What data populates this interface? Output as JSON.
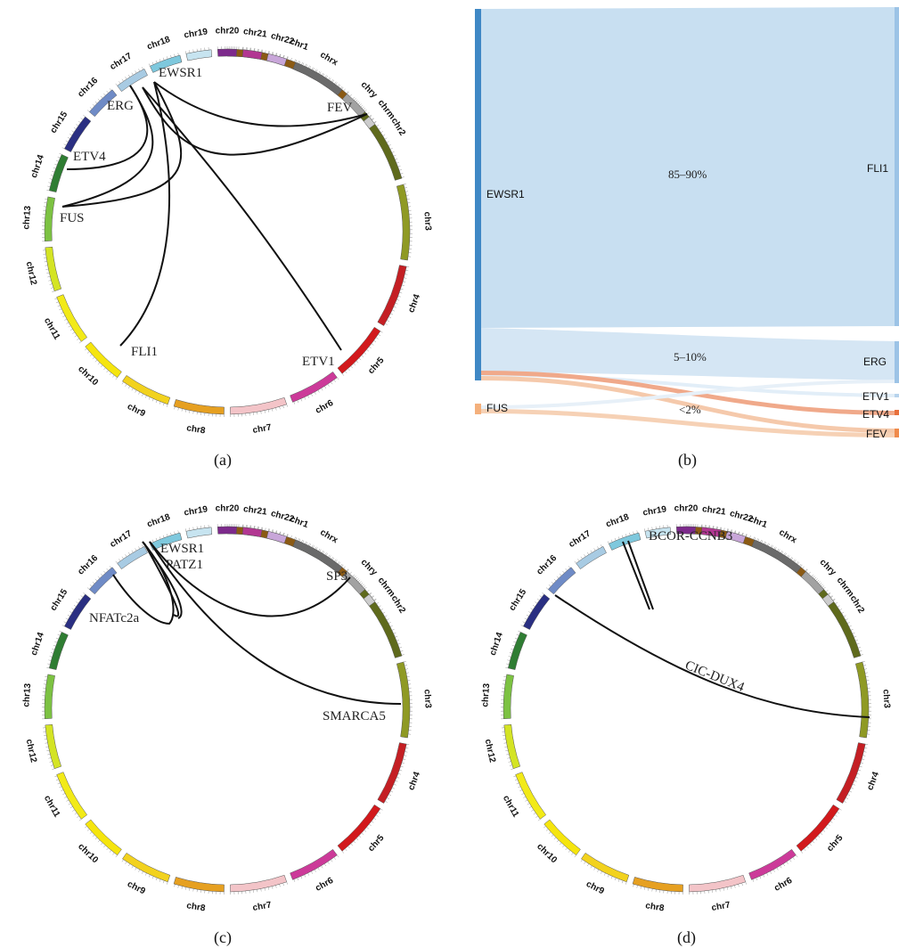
{
  "chromosomes": [
    {
      "name": "chr1",
      "color": "#8b5a14"
    },
    {
      "name": "chr2",
      "color": "#5f6a1c"
    },
    {
      "name": "chr3",
      "color": "#8f9a24"
    },
    {
      "name": "chr4",
      "color": "#c41f24"
    },
    {
      "name": "chr5",
      "color": "#d2191c"
    },
    {
      "name": "chr6",
      "color": "#cc3a99"
    },
    {
      "name": "chr7",
      "color": "#f3c4c8"
    },
    {
      "name": "chr8",
      "color": "#e6a021"
    },
    {
      "name": "chr9",
      "color": "#f2d21e"
    },
    {
      "name": "chr10",
      "color": "#f5e50e"
    },
    {
      "name": "chr11",
      "color": "#f2ea18"
    },
    {
      "name": "chr12",
      "color": "#d4e424"
    },
    {
      "name": "chr13",
      "color": "#7cc242"
    },
    {
      "name": "chr14",
      "color": "#2f7d33"
    },
    {
      "name": "chr15",
      "color": "#2a2f82"
    },
    {
      "name": "chr16",
      "color": "#6f8bc6"
    },
    {
      "name": "chr17",
      "color": "#a8cbe3"
    },
    {
      "name": "chr18",
      "color": "#7ec8dd"
    },
    {
      "name": "chr19",
      "color": "#c7e4f0"
    },
    {
      "name": "chr20",
      "color": "#7d2a8c"
    },
    {
      "name": "chr21",
      "color": "#b23792"
    },
    {
      "name": "chr22",
      "color": "#c8a6d9"
    },
    {
      "name": "chrx",
      "color": "#6a6a6a"
    },
    {
      "name": "chry",
      "color": "#a2a2a2"
    },
    {
      "name": "chrm",
      "color": "#cccccc"
    }
  ],
  "panels": {
    "a": {
      "label": "(a)",
      "genes": [
        {
          "name": "EWSR1",
          "anchor": "start"
        },
        {
          "name": "ERG",
          "anchor": "start"
        },
        {
          "name": "FEV",
          "anchor": "start"
        },
        {
          "name": "ETV4",
          "anchor": "start"
        },
        {
          "name": "FUS",
          "anchor": "start"
        },
        {
          "name": "FLI1",
          "anchor": "start"
        },
        {
          "name": "ETV1",
          "anchor": "start"
        }
      ]
    },
    "b": {
      "label": "(b)",
      "sources": [
        "EWSR1",
        "FUS"
      ],
      "targets": [
        "FLI1",
        "ERG",
        "ETV1",
        "ETV4",
        "FEV"
      ],
      "percentages": [
        "85–90%",
        "5–10%",
        "<2%"
      ],
      "colors": {
        "ewsr1": "#3f88c5",
        "ewsr1_link": "#c8dff1",
        "fus": "#f4b07c",
        "fus_link": "#f3c7a4"
      }
    },
    "c": {
      "label": "(c)",
      "genes": [
        {
          "name": "EWSR1"
        },
        {
          "name": "PATZ1"
        },
        {
          "name": "SP3"
        },
        {
          "name": "NFATc2a"
        },
        {
          "name": "SMARCA5"
        }
      ]
    },
    "d": {
      "label": "(d)",
      "genes": [
        {
          "name": "BCOR-CCNB3"
        },
        {
          "name": "CIC-DUX4"
        }
      ]
    }
  }
}
